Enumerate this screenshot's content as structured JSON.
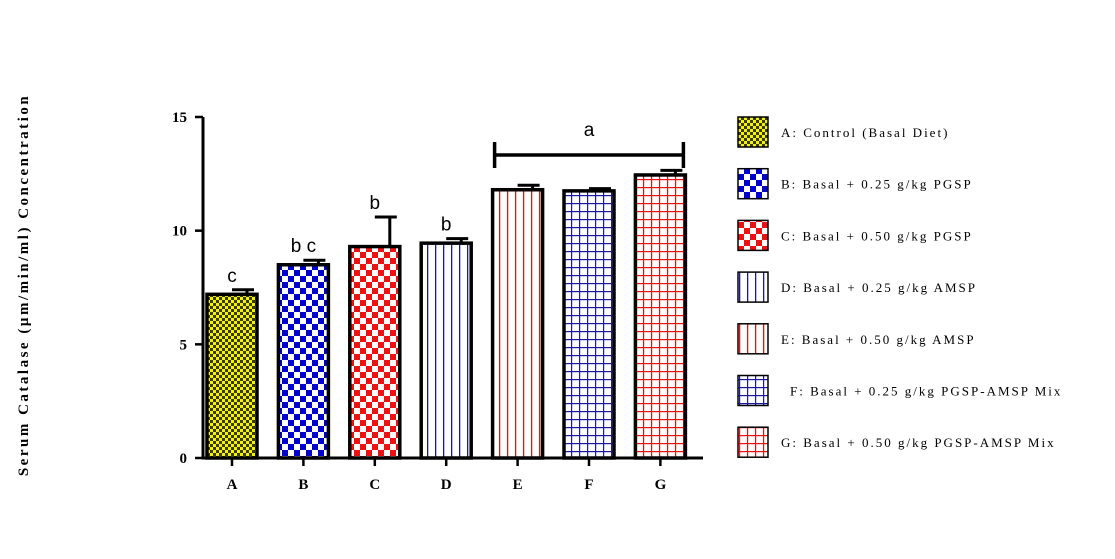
{
  "chart_data": {
    "type": "bar",
    "title": "",
    "xlabel": "",
    "ylabel": "Serum Catalase (µm/min/ml) Concentration",
    "ylim": [
      0,
      15
    ],
    "yticks": [
      0,
      5,
      10,
      15
    ],
    "grid": false,
    "legend_position": "right",
    "categories": [
      "A",
      "B",
      "C",
      "D",
      "E",
      "F",
      "G"
    ],
    "values": [
      7.2,
      8.5,
      9.3,
      9.45,
      11.8,
      11.75,
      12.45
    ],
    "errors": [
      0.2,
      0.2,
      1.3,
      0.2,
      0.2,
      0.1,
      0.2
    ],
    "significance": [
      "c",
      "b c",
      "b",
      "b",
      "",
      "",
      ""
    ],
    "group_annotation": {
      "label": "a",
      "from": "E",
      "to": "G"
    },
    "bar_patterns": [
      {
        "type": "fine-check",
        "color": "#c9c900"
      },
      {
        "type": "check",
        "color": "#0000cc"
      },
      {
        "type": "check",
        "color": "#ee1111"
      },
      {
        "type": "vlines",
        "color": "#1a1aa0"
      },
      {
        "type": "vlines",
        "color": "#ee1111"
      },
      {
        "type": "grid",
        "color": "#1a1aa0"
      },
      {
        "type": "grid",
        "color": "#ee1111"
      }
    ],
    "legend": [
      "A: Control (Basal Diet)",
      "B: Basal + 0.25 g/kg PGSP",
      "C: Basal + 0.50 g/kg PGSP",
      "D: Basal + 0.25 g/kg AMSP",
      "E: Basal + 0.50 g/kg AMSP",
      "F: Basal + 0.25 g/kg PGSP-AMSP Mix",
      "G: Basal + 0.50 g/kg PGSP-AMSP Mix"
    ]
  }
}
